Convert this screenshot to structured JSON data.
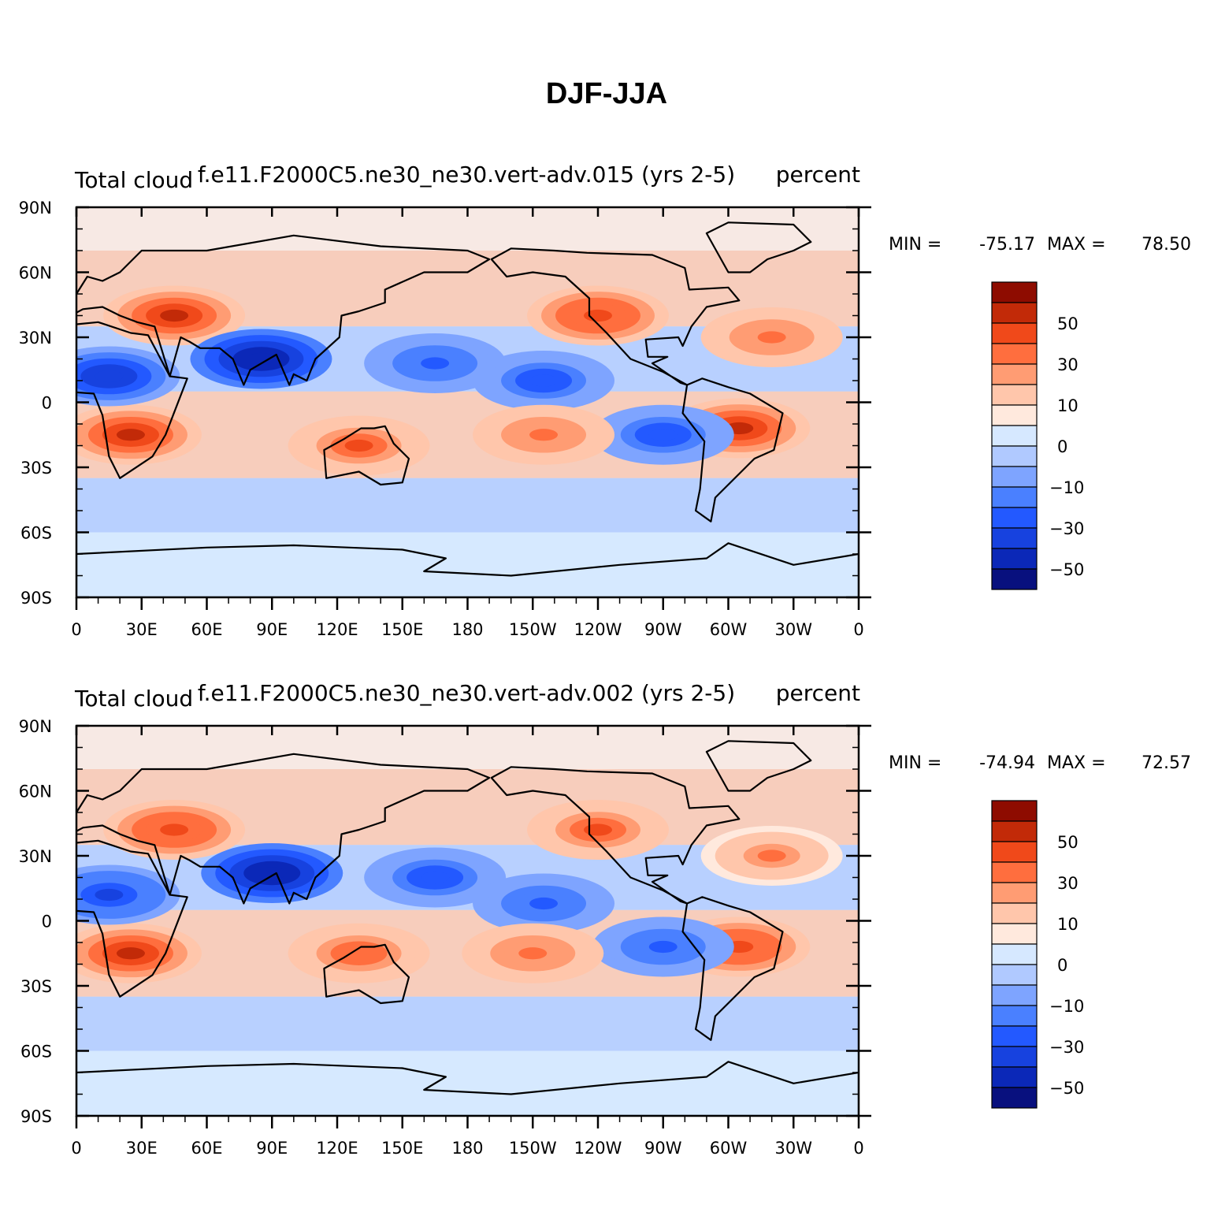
{
  "figure_title": "DJF-JJA",
  "colors": {
    "levels": [
      "#08107e",
      "#0b28b8",
      "#1742df",
      "#2359ff",
      "#4a80ff",
      "#7ea4ff",
      "#b0c9ff",
      "#d6e8ff",
      "#ffe9dd",
      "#ffc6ab",
      "#ff9c73",
      "#ff6e3e",
      "#f0491a",
      "#c22a08",
      "#8e0c00"
    ],
    "coast": "#000000"
  },
  "panels": [
    {
      "id": "top",
      "left_title": "Total cloud",
      "center_title": "f.e11.F2000C5.ne30_ne30.vert-adv.015 (yrs 2-5)",
      "right_title": "percent",
      "min_label": "MIN =",
      "min_value": "-75.17",
      "max_label": "MAX =",
      "max_value": "78.50"
    },
    {
      "id": "bottom",
      "left_title": "Total cloud",
      "center_title": "f.e11.F2000C5.ne30_ne30.vert-adv.002 (yrs 2-5)",
      "right_title": "percent",
      "min_label": "MIN =",
      "min_value": "-74.94",
      "max_label": "MAX =",
      "max_value": "72.57"
    }
  ],
  "lat_labels": [
    "90N",
    "60N",
    "30N",
    "0",
    "30S",
    "60S",
    "90S"
  ],
  "lon_labels": [
    "0",
    "30E",
    "60E",
    "90E",
    "120E",
    "150E",
    "180",
    "150W",
    "120W",
    "90W",
    "60W",
    "30W",
    "0"
  ],
  "colorbar_labels": [
    "50",
    "30",
    "10",
    "0",
    "-10",
    "-30",
    "-50"
  ],
  "chart_data": [
    {
      "type": "heatmap",
      "title": "Total cloud — f.e11.F2000C5.ne30_ne30.vert-adv.015 (yrs 2-5)",
      "units": "percent",
      "x_range": [
        0,
        360
      ],
      "y_range": [
        -90,
        90
      ],
      "min": -75.17,
      "max": 78.5,
      "levels": [
        -70,
        -60,
        -50,
        -40,
        -30,
        -20,
        -10,
        0,
        10,
        20,
        30,
        40,
        50,
        60,
        70
      ],
      "features": [
        {
          "lon": 45,
          "lat": 40,
          "value": 55
        },
        {
          "lon": 25,
          "lat": -15,
          "value": 60
        },
        {
          "lon": 130,
          "lat": -20,
          "value": 45
        },
        {
          "lon": 305,
          "lat": -12,
          "value": 58
        },
        {
          "lon": 240,
          "lat": 40,
          "value": 50
        },
        {
          "lon": 85,
          "lat": 20,
          "value": -65
        },
        {
          "lon": 15,
          "lat": 12,
          "value": -55
        },
        {
          "lon": 165,
          "lat": 18,
          "value": -40
        },
        {
          "lon": 215,
          "lat": 10,
          "value": -45
        },
        {
          "lon": 270,
          "lat": -15,
          "value": -45
        },
        {
          "lon": 215,
          "lat": -15,
          "value": 40
        },
        {
          "lon": 320,
          "lat": 30,
          "value": 40
        }
      ]
    },
    {
      "type": "heatmap",
      "title": "Total cloud — f.e11.F2000C5.ne30_ne30.vert-adv.002 (yrs 2-5)",
      "units": "percent",
      "x_range": [
        0,
        360
      ],
      "y_range": [
        -90,
        90
      ],
      "min": -74.94,
      "max": 72.57,
      "levels": [
        -70,
        -60,
        -50,
        -40,
        -30,
        -20,
        -10,
        0,
        10,
        20,
        30,
        40,
        50,
        60,
        70
      ],
      "features": [
        {
          "lon": 45,
          "lat": 42,
          "value": 52
        },
        {
          "lon": 25,
          "lat": -15,
          "value": 58
        },
        {
          "lon": 130,
          "lat": -15,
          "value": 42
        },
        {
          "lon": 305,
          "lat": -12,
          "value": 50
        },
        {
          "lon": 240,
          "lat": 42,
          "value": 45
        },
        {
          "lon": 90,
          "lat": 22,
          "value": -65
        },
        {
          "lon": 15,
          "lat": 12,
          "value": -50
        },
        {
          "lon": 165,
          "lat": 20,
          "value": -45
        },
        {
          "lon": 215,
          "lat": 8,
          "value": -40
        },
        {
          "lon": 270,
          "lat": -12,
          "value": -40
        },
        {
          "lon": 210,
          "lat": -15,
          "value": 38
        },
        {
          "lon": 320,
          "lat": 30,
          "value": 35
        }
      ]
    }
  ]
}
